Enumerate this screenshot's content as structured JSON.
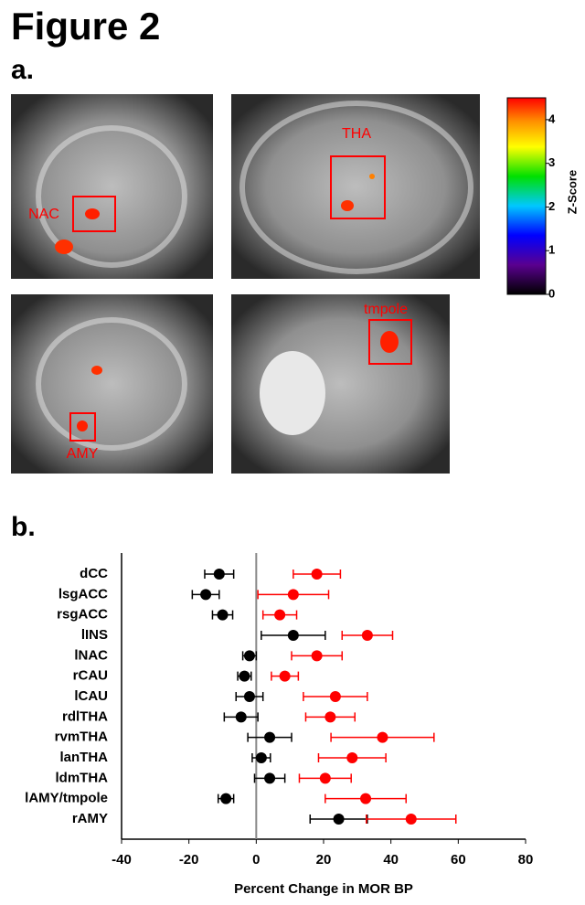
{
  "figure": {
    "title": "Figure 2",
    "panel_a_label": "a.",
    "panel_b_label": "b."
  },
  "panel_a": {
    "regions": [
      "NAC",
      "THA",
      "AMY",
      "tmpole"
    ],
    "colorbar": {
      "label": "Z-Score",
      "clim": [
        0,
        4.5
      ],
      "ticks": [
        0,
        1,
        2,
        3,
        4
      ]
    }
  },
  "chart_data": {
    "type": "dot_error",
    "xlabel": "Percent Change in MOR BP",
    "categories": [
      "dCC",
      "lsgACC",
      "rsgACC",
      "lINS",
      "lNAC",
      "rCAU",
      "lCAU",
      "rdlTHA",
      "rvmTHA",
      "lanTHA",
      "ldmTHA",
      "lAMY/tmpole",
      "rAMY"
    ],
    "series": [
      {
        "color": "#000000",
        "values": [
          -11,
          -15,
          -10,
          11,
          -2,
          -3.5,
          -2,
          -4.5,
          4,
          1.5,
          4,
          -9,
          24.5
        ],
        "errors": [
          4.3,
          4,
          3,
          9.5,
          2,
          2,
          4,
          5,
          6.5,
          2.7,
          4.5,
          2.3,
          8.5
        ]
      },
      {
        "color": "#ff0000",
        "values": [
          18,
          11,
          7,
          33,
          18,
          8.5,
          23.5,
          22,
          37.5,
          28.5,
          20.5,
          32.5,
          46
        ],
        "errors": [
          7,
          10.5,
          5,
          7.5,
          7.5,
          4,
          9.5,
          7.3,
          15.3,
          10,
          7.7,
          12,
          13.3
        ]
      }
    ],
    "xlim": [
      -40,
      80
    ],
    "xticks": [
      -40,
      -20,
      0,
      20,
      40,
      60,
      80
    ],
    "zero_line": true
  }
}
